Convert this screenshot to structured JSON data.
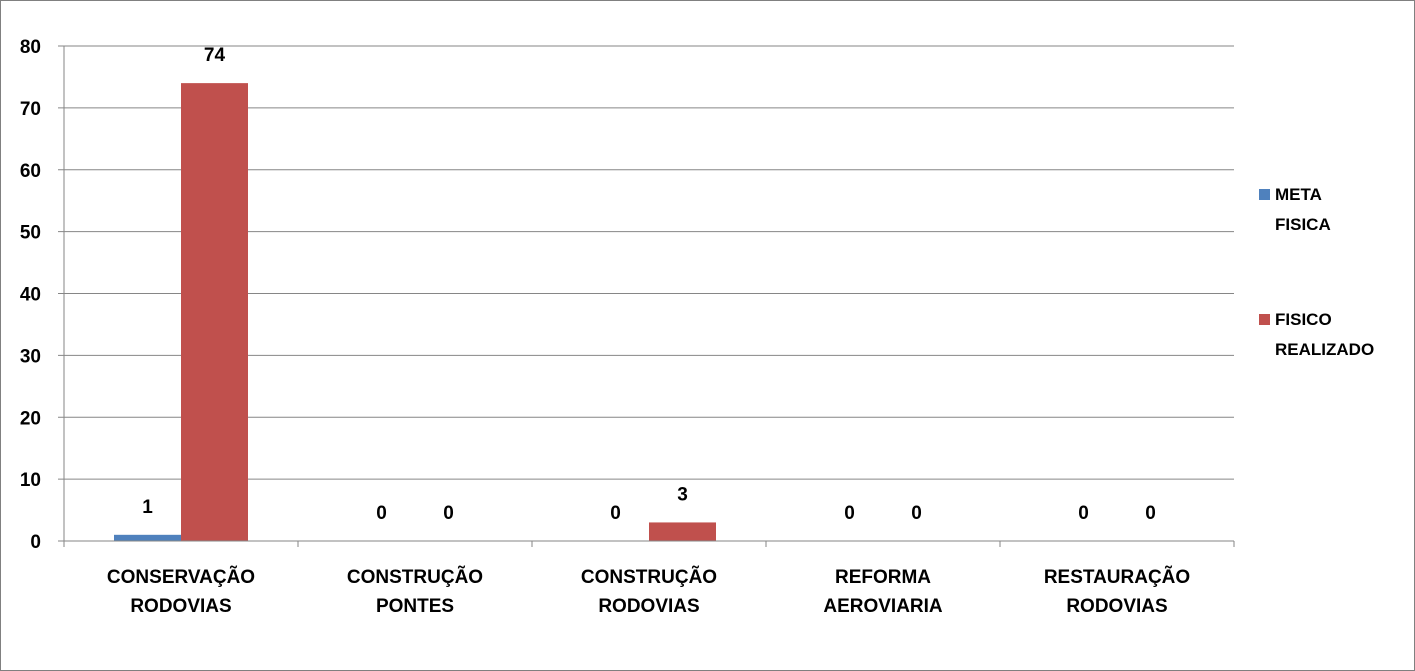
{
  "chart_data": {
    "type": "bar",
    "categories": [
      [
        "CONSERVAÇÃO",
        "RODOVIAS"
      ],
      [
        "CONSTRUÇÃO",
        "PONTES"
      ],
      [
        "CONSTRUÇÃO",
        "RODOVIAS"
      ],
      [
        "REFORMA",
        "AEROVIARIA"
      ],
      [
        "RESTAURAÇÃO",
        "RODOVIAS"
      ]
    ],
    "series": [
      {
        "name": [
          "META",
          "FISICA"
        ],
        "values": [
          1,
          0,
          0,
          0,
          0
        ],
        "color": "#4F81BD"
      },
      {
        "name": [
          "FISICO",
          "REALIZADO"
        ],
        "values": [
          74,
          0,
          3,
          0,
          0
        ],
        "color": "#C0504D"
      }
    ],
    "ylim": [
      0,
      80
    ],
    "yticks": [
      0,
      10,
      20,
      30,
      40,
      50,
      60,
      70,
      80
    ],
    "grid": true,
    "legend_position": "right",
    "data_labels": true
  }
}
